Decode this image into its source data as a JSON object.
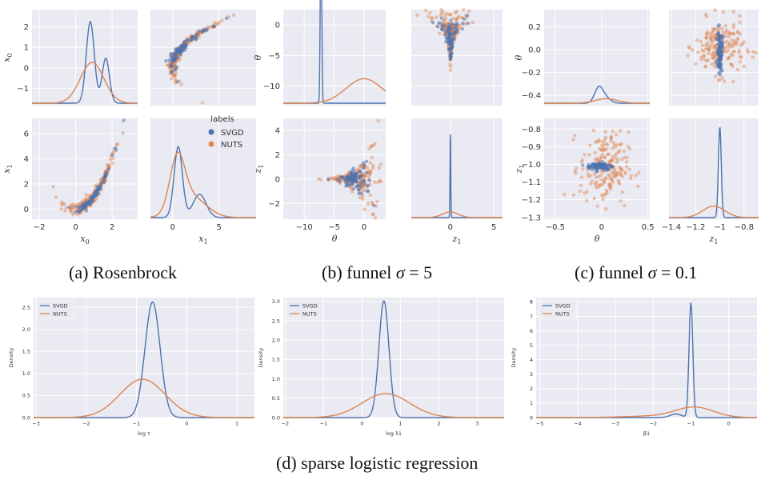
{
  "colors": {
    "svgd": "#4c72b0",
    "nuts": "#dd8452",
    "panel_bg": "#eaeaf2",
    "grid": "#ffffff",
    "text": "#333333"
  },
  "legend": {
    "title": "labels",
    "svgd": "SVGD",
    "nuts": "NUTS"
  },
  "captions": {
    "a": "(a) Rosenbrock",
    "b_prefix": "(b) funnel",
    "b_sigma": "σ",
    "b_value": "= 5",
    "c_prefix": "(c) funnel",
    "c_sigma": "σ",
    "c_value": "= 0.1",
    "d": "(d) sparse logistic regression"
  },
  "chart_data": [
    {
      "id": "rosenbrock",
      "type": "scatter",
      "axes": [
        {
          "id": "a00",
          "kind": "density",
          "ylabel": "x0",
          "xlim": [
            -2.4,
            3.4
          ],
          "ylim": [
            -1.85,
            2.85
          ],
          "yticks": [
            -1,
            0,
            1,
            2
          ],
          "xticks": [],
          "series": [
            {
              "name": "SVGD",
              "peaks": [
                [
                  0.8,
                  1.0,
                  0.22
                ],
                [
                  1.65,
                  0.55,
                  0.2
                ]
              ]
            },
            {
              "name": "NUTS",
              "peaks": [
                [
                  0.9,
                  0.5,
                  0.65
                ]
              ]
            }
          ]
        },
        {
          "id": "a01",
          "kind": "scatter",
          "xlim": [
            -2.4,
            9.0
          ],
          "ylim": [
            -1.85,
            2.85
          ],
          "xticks": [],
          "yticks": [],
          "shape": "parabola_x_vs_x0",
          "series": [
            "NUTS",
            "SVGD"
          ]
        },
        {
          "id": "a10",
          "kind": "scatter",
          "ylabel": "x1",
          "xlabel": "x0",
          "xlim": [
            -2.4,
            3.4
          ],
          "ylim": [
            -0.8,
            7.2
          ],
          "xticks": [
            -2,
            0,
            2
          ],
          "yticks": [
            0,
            2,
            4,
            6
          ],
          "shape": "parabola",
          "series": [
            "NUTS",
            "SVGD"
          ]
        },
        {
          "id": "a11",
          "kind": "density",
          "xlabel": "x1",
          "xlim": [
            -2.4,
            9.0
          ],
          "ylim": [
            0,
            1
          ],
          "xticks": [
            0,
            5
          ],
          "yticks": [],
          "series": [
            {
              "name": "SVGD",
              "peaks": [
                [
                  0.6,
                  0.85,
                  0.45
                ],
                [
                  2.9,
                  0.28,
                  0.7
                ]
              ]
            },
            {
              "name": "NUTS",
              "peaks": [
                [
                  0.5,
                  0.62,
                  0.8
                ],
                [
                  2.0,
                  0.25,
                  1.6
                ]
              ]
            }
          ]
        }
      ],
      "legend_position": "top-right of lower-right panel"
    },
    {
      "id": "funnel5",
      "type": "scatter",
      "axes": [
        {
          "id": "b00",
          "kind": "density",
          "ylabel": "θ",
          "xlim": [
            -13.5,
            3.6
          ],
          "ylim": [
            -13.2,
            2.5
          ],
          "yticks": [
            -10,
            -5,
            0
          ],
          "xticks": [],
          "series": [
            {
              "name": "SVGD",
              "peaks": [
                [
                  -7.2,
                  2.4,
                  0.12
                ]
              ]
            },
            {
              "name": "NUTS",
              "peaks": [
                [
                  0,
                  0.3,
                  3.0
                ]
              ]
            }
          ]
        },
        {
          "id": "b01",
          "kind": "scatter",
          "xlim": [
            -4.5,
            6.0
          ],
          "ylim": [
            -13.2,
            2.5
          ],
          "xticks": [],
          "yticks": [],
          "shape": "funnel_theta_vs_z",
          "series": [
            "NUTS",
            "SVGD"
          ]
        },
        {
          "id": "b10",
          "kind": "scatter",
          "ylabel": "z1",
          "xlabel": "θ",
          "xlim": [
            -13.5,
            3.6
          ],
          "ylim": [
            -3.3,
            5.0
          ],
          "xticks": [
            -10,
            -5,
            0
          ],
          "yticks": [
            -2,
            0,
            2,
            4
          ],
          "shape": "funnel_z_vs_theta",
          "series": [
            "NUTS",
            "SVGD"
          ]
        },
        {
          "id": "b11",
          "kind": "density",
          "xlabel": "z1",
          "xlim": [
            -4.5,
            6.0
          ],
          "ylim": [
            0,
            1
          ],
          "xticks": [
            0,
            5
          ],
          "yticks": [],
          "series": [
            {
              "name": "SVGD",
              "peaks": [
                [
                  0,
                  0.95,
                  0.04
                ]
              ]
            },
            {
              "name": "NUTS",
              "peaks": [
                [
                  0,
                  0.06,
                  0.9
                ]
              ]
            }
          ]
        }
      ]
    },
    {
      "id": "funnel01",
      "type": "scatter",
      "axes": [
        {
          "id": "c00",
          "kind": "density",
          "ylabel": "θ",
          "xlim": [
            -0.62,
            0.52
          ],
          "ylim": [
            -0.49,
            0.35
          ],
          "yticks": [
            -0.4,
            -0.2,
            0.0,
            0.2
          ],
          "xticks": [],
          "series": [
            {
              "name": "SVGD",
              "peaks": [
                [
                  -0.03,
                  0.19,
                  0.045
                ],
                [
                  0.05,
                  0.06,
                  0.05
                ]
              ]
            },
            {
              "name": "NUTS",
              "peaks": [
                [
                  0.05,
                  0.055,
                  0.12
                ]
              ]
            }
          ]
        },
        {
          "id": "c01",
          "kind": "scatter",
          "xlim": [
            -1.42,
            -0.68
          ],
          "ylim": [
            -0.49,
            0.35
          ],
          "xticks": [],
          "yticks": [],
          "shape": "cloud_vertical",
          "series": [
            "NUTS",
            "SVGD"
          ]
        },
        {
          "id": "c10",
          "kind": "scatter",
          "ylabel": "z1",
          "xlabel": "θ",
          "xlim": [
            -0.62,
            0.52
          ],
          "ylim": [
            -1.31,
            -0.74
          ],
          "xticks": [
            -0.5,
            0.0,
            0.5
          ],
          "yticks": [
            -0.8,
            -0.9,
            -1.0,
            -1.1,
            -1.2,
            -1.3
          ],
          "shape": "cloud_horizontal",
          "series": [
            "NUTS",
            "SVGD"
          ]
        },
        {
          "id": "c11",
          "kind": "density",
          "xlabel": "z1",
          "xlim": [
            -1.42,
            -0.68
          ],
          "ylim": [
            0,
            1
          ],
          "xticks": [
            -1.4,
            -1.2,
            -1.0,
            -0.8
          ],
          "yticks": [],
          "series": [
            {
              "name": "SVGD",
              "peaks": [
                [
                  -1.0,
                  0.94,
                  0.012
                ]
              ]
            },
            {
              "name": "NUTS",
              "peaks": [
                [
                  -1.05,
                  0.12,
                  0.09
                ]
              ]
            }
          ]
        }
      ]
    },
    {
      "id": "logreg_tau",
      "type": "line",
      "xlabel": "log τ",
      "ylabel": "Density",
      "xlim": [
        -3.05,
        1.35
      ],
      "ylim": [
        0,
        2.72
      ],
      "xticks": [
        -3,
        -2,
        -1,
        0,
        1
      ],
      "yticks": [
        0.0,
        0.5,
        1.0,
        1.5,
        2.0,
        2.5
      ],
      "legend_position": "top-left",
      "series": [
        {
          "name": "SVGD",
          "peaks": [
            [
              -0.68,
              2.62,
              0.15
            ]
          ]
        },
        {
          "name": "NUTS",
          "peaks": [
            [
              -0.88,
              0.87,
              0.45
            ]
          ]
        }
      ]
    },
    {
      "id": "logreg_lambda",
      "type": "line",
      "xlabel": "log λ1",
      "ylabel": "Density",
      "xlim": [
        -2.05,
        3.7
      ],
      "ylim": [
        0,
        3.1
      ],
      "xticks": [
        -2,
        -1,
        0,
        1,
        2,
        3
      ],
      "yticks": [
        0.0,
        0.5,
        1.0,
        1.5,
        2.0,
        2.5,
        3.0
      ],
      "legend_position": "top-left",
      "series": [
        {
          "name": "SVGD",
          "peaks": [
            [
              0.57,
              3.02,
              0.13
            ]
          ]
        },
        {
          "name": "NUTS",
          "peaks": [
            [
              0.62,
              0.62,
              0.62
            ]
          ]
        }
      ]
    },
    {
      "id": "logreg_beta",
      "type": "line",
      "xlabel": "β1",
      "ylabel": "Density",
      "xlim": [
        -5.1,
        0.75
      ],
      "ylim": [
        0,
        8.3
      ],
      "xticks": [
        -5,
        -4,
        -3,
        -2,
        -1,
        0
      ],
      "yticks": [
        0,
        1,
        2,
        3,
        4,
        5,
        6,
        7,
        8
      ],
      "legend_position": "top-left",
      "series": [
        {
          "name": "SVGD",
          "peaks": [
            [
              -1.0,
              8.0,
              0.05
            ],
            [
              -1.4,
              0.25,
              0.15
            ]
          ]
        },
        {
          "name": "NUTS",
          "peaks": [
            [
              -0.9,
              0.7,
              0.5
            ],
            [
              -2.0,
              0.1,
              0.8
            ]
          ]
        }
      ]
    }
  ]
}
